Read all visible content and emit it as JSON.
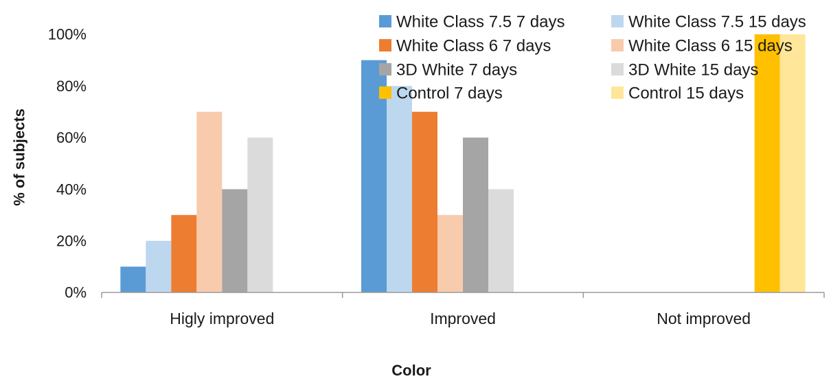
{
  "chart_data": {
    "type": "bar",
    "title": "",
    "xlabel": "Color",
    "ylabel": "% of subjects",
    "ylim": [
      0,
      100
    ],
    "yticks": [
      "0%",
      "20%",
      "40%",
      "60%",
      "80%",
      "100%"
    ],
    "categories": [
      "Higly improved",
      "Improved",
      "Not improved"
    ],
    "legend_position": "top-right",
    "grid": false,
    "series": [
      {
        "name": "White Class 7.5 7 days",
        "color": "#5b9bd5",
        "values": [
          10,
          90,
          0
        ]
      },
      {
        "name": "White Class 7.5 15 days",
        "color": "#bdd7ee",
        "values": [
          20,
          80,
          0
        ]
      },
      {
        "name": "White Class 6 7 days",
        "color": "#ed7d31",
        "values": [
          30,
          70,
          0
        ]
      },
      {
        "name": "White Class 6 15 days",
        "color": "#f8cbad",
        "values": [
          70,
          30,
          0
        ]
      },
      {
        "name": "3D White 7 days",
        "color": "#a5a5a5",
        "values": [
          40,
          60,
          0
        ]
      },
      {
        "name": "3D White 15 days",
        "color": "#dbdbdb",
        "values": [
          60,
          40,
          0
        ]
      },
      {
        "name": "Control 7 days",
        "color": "#ffc000",
        "values": [
          0,
          0,
          100
        ]
      },
      {
        "name": "Control 15 days",
        "color": "#ffe699",
        "values": [
          0,
          0,
          100
        ]
      }
    ]
  }
}
